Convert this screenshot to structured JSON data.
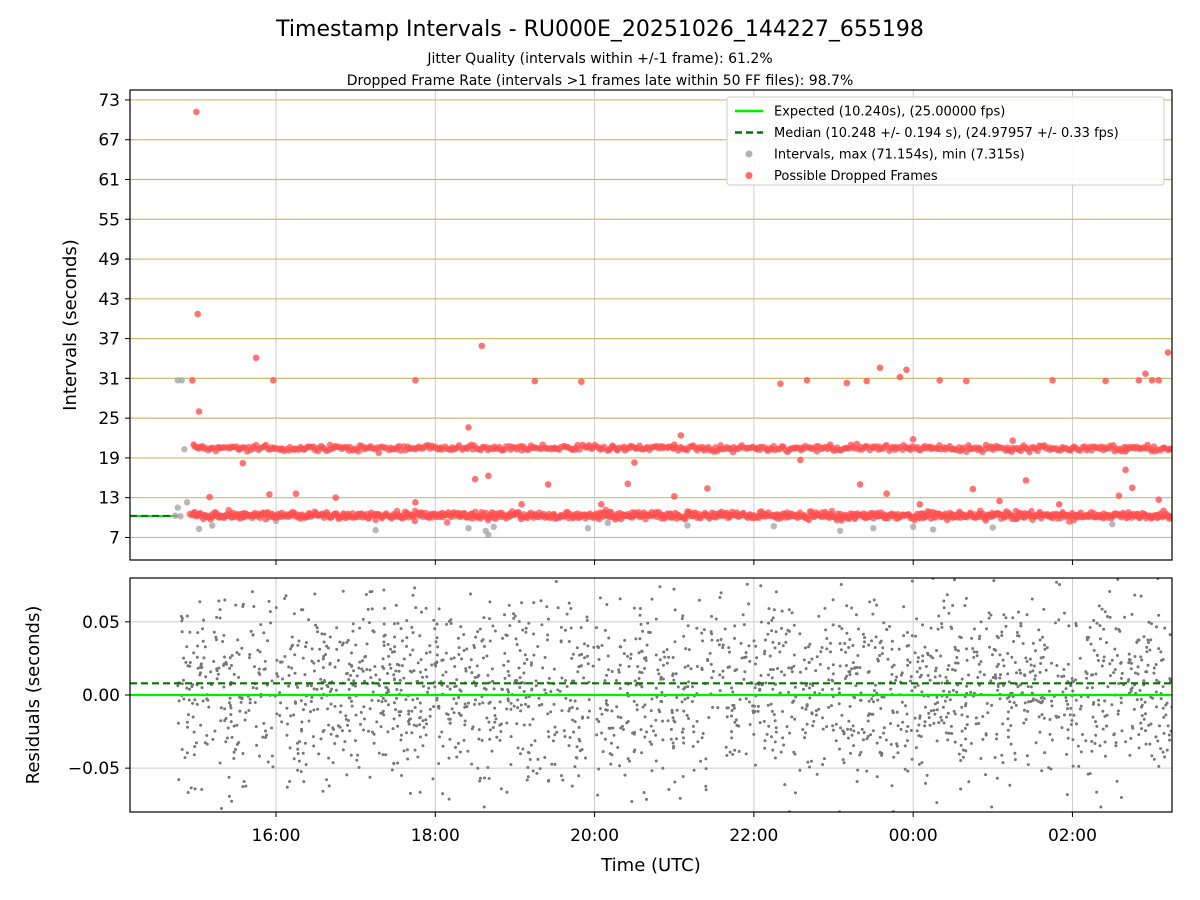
{
  "title": "Timestamp Intervals - RU000E_20251026_144227_655198",
  "subtitle_1": "Jitter Quality (intervals within +/-1 frame): 61.2%",
  "subtitle_2": "Dropped Frame Rate (intervals >1 frames late within 50 FF files): 98.7%",
  "chart_data": [
    {
      "type": "scatter",
      "panel": "top",
      "xlabel": "",
      "ylabel": "Intervals (seconds)",
      "xlim_hours_utc": [
        "14:10",
        "03:15"
      ],
      "ylim": [
        3.6,
        74.5
      ],
      "yticks": [
        7,
        13,
        19,
        25,
        31,
        37,
        43,
        49,
        55,
        61,
        67,
        73
      ],
      "ytick_labels": [
        "7",
        "13",
        "19",
        "25",
        "31",
        "37",
        "43",
        "49",
        "55",
        "61",
        "67",
        "73"
      ],
      "horizontal_gridlines": "olive at each ytick",
      "vertical_grid": true,
      "legend_position": "top-right",
      "legend": [
        {
          "label": "Expected (10.240s), (25.00000 fps)",
          "style": "solid-line",
          "color": "#00ee00"
        },
        {
          "label": "Median (10.248 +/- 0.194 s), (24.97957 +/- 0.33 fps)",
          "style": "dashed-line",
          "color": "#007700"
        },
        {
          "label": "Intervals, max (71.154s), min (7.315s)",
          "style": "marker",
          "color": "#a6a6a6"
        },
        {
          "label": "Possible Dropped Frames",
          "style": "marker",
          "color": "#ff5050"
        }
      ],
      "expected_interval": 10.24,
      "median_interval": 10.248,
      "series": [
        {
          "name": "Intervals, max (71.154s), min (7.315s)",
          "color": "#a6a6a6",
          "points": [
            [
              "14:46",
              30.7
            ],
            [
              "14:49",
              30.7
            ],
            [
              "14:51",
              20.3
            ],
            [
              "14:53",
              12.3
            ],
            [
              "14:46",
              11.5
            ],
            [
              "15:02",
              8.3
            ],
            [
              "15:12",
              8.8
            ],
            [
              "16:00",
              9.5
            ],
            [
              "17:15",
              8.1
            ],
            [
              "18:25",
              8.4
            ],
            [
              "18:38",
              8.0
            ],
            [
              "18:40",
              7.4
            ],
            [
              "18:44",
              8.6
            ],
            [
              "19:55",
              8.4
            ],
            [
              "20:10",
              9.2
            ],
            [
              "21:10",
              8.8
            ],
            [
              "22:15",
              8.7
            ],
            [
              "23:05",
              8.0
            ],
            [
              "23:30",
              8.4
            ],
            [
              "00:00",
              8.6
            ],
            [
              "00:15",
              8.2
            ],
            [
              "01:00",
              8.5
            ],
            [
              "02:30",
              9.0
            ],
            [
              "14:44",
              10.3
            ],
            [
              "14:48",
              10.2
            ]
          ]
        },
        {
          "name": "Possible Dropped Frames",
          "color": "#ff5050",
          "points": [
            [
              "15:00",
              71.2
            ],
            [
              "15:01",
              40.7
            ],
            [
              "15:02",
              26.0
            ],
            [
              "14:57",
              30.7
            ],
            [
              "15:45",
              34.1
            ],
            [
              "15:58",
              30.7
            ],
            [
              "17:45",
              30.7
            ],
            [
              "18:35",
              35.9
            ],
            [
              "18:25",
              23.6
            ],
            [
              "19:15",
              30.6
            ],
            [
              "19:50",
              30.5
            ],
            [
              "21:05",
              22.4
            ],
            [
              "22:20",
              30.2
            ],
            [
              "22:40",
              30.7
            ],
            [
              "23:10",
              30.3
            ],
            [
              "23:25",
              30.6
            ],
            [
              "23:35",
              32.6
            ],
            [
              "23:50",
              31.2
            ],
            [
              "23:55",
              32.3
            ],
            [
              "00:20",
              30.7
            ],
            [
              "00:40",
              30.6
            ],
            [
              "01:45",
              30.7
            ],
            [
              "02:25",
              30.6
            ],
            [
              "02:50",
              30.7
            ],
            [
              "02:55",
              31.7
            ],
            [
              "03:00",
              30.7
            ],
            [
              "03:05",
              30.7
            ],
            [
              "03:12",
              34.9
            ],
            [
              "15:35",
              18.2
            ],
            [
              "20:30",
              18.3
            ],
            [
              "22:35",
              18.7
            ],
            [
              "02:40",
              17.2
            ],
            [
              "18:40",
              16.3
            ],
            [
              "18:30",
              15.8
            ],
            [
              "19:25",
              15.0
            ],
            [
              "20:25",
              15.1
            ],
            [
              "23:20",
              15.0
            ],
            [
              "00:45",
              14.3
            ],
            [
              "01:25",
              15.6
            ],
            [
              "02:45",
              14.5
            ],
            [
              "21:25",
              14.4
            ],
            [
              "17:45",
              12.3
            ],
            [
              "16:45",
              13.0
            ],
            [
              "15:10",
              13.1
            ],
            [
              "15:55",
              13.5
            ],
            [
              "16:15",
              13.6
            ],
            [
              "19:05",
              12.0
            ],
            [
              "20:05",
              12.0
            ],
            [
              "21:00",
              13.2
            ],
            [
              "23:40",
              13.6
            ],
            [
              "00:05",
              12.0
            ],
            [
              "01:05",
              12.5
            ],
            [
              "01:50",
              12.0
            ],
            [
              "02:35",
              13.3
            ],
            [
              "03:05",
              12.7
            ],
            [
              "14:58",
              21.0
            ],
            [
              "00:00",
              21.8
            ],
            [
              "01:15",
              21.6
            ],
            [
              "02:40",
              20.0
            ],
            [
              "21:00",
              21.0
            ]
          ],
          "bands": [
            {
              "name": "main-band",
              "x_range": [
                "14:55",
                "03:15"
              ],
              "y_center": 10.3,
              "y_spread": 0.6
            },
            {
              "name": "double-band",
              "x_range": [
                "14:58",
                "03:15"
              ],
              "y_center": 20.5,
              "y_spread": 0.5
            }
          ]
        }
      ]
    },
    {
      "type": "scatter",
      "panel": "bottom",
      "xlabel": "Time (UTC)",
      "ylabel": "Residuals (seconds)",
      "xlim_hours_utc": [
        "14:10",
        "03:15"
      ],
      "ylim": [
        -0.08,
        0.08
      ],
      "yticks": [
        -0.05,
        0.0,
        0.05
      ],
      "ytick_labels": [
        "−0.05",
        "0.00",
        "0.05"
      ],
      "xticks": [
        "16:00",
        "18:00",
        "20:00",
        "22:00",
        "00:00",
        "02:00"
      ],
      "grid": true,
      "expected_residual": 0.0,
      "median_residual": 0.008,
      "series": [
        {
          "name": "Residuals",
          "color": "#777777",
          "x_range": [
            "14:46",
            "03:15"
          ],
          "distribution": "dense scatter centered near 0.005, spread about 0.03"
        }
      ]
    }
  ]
}
